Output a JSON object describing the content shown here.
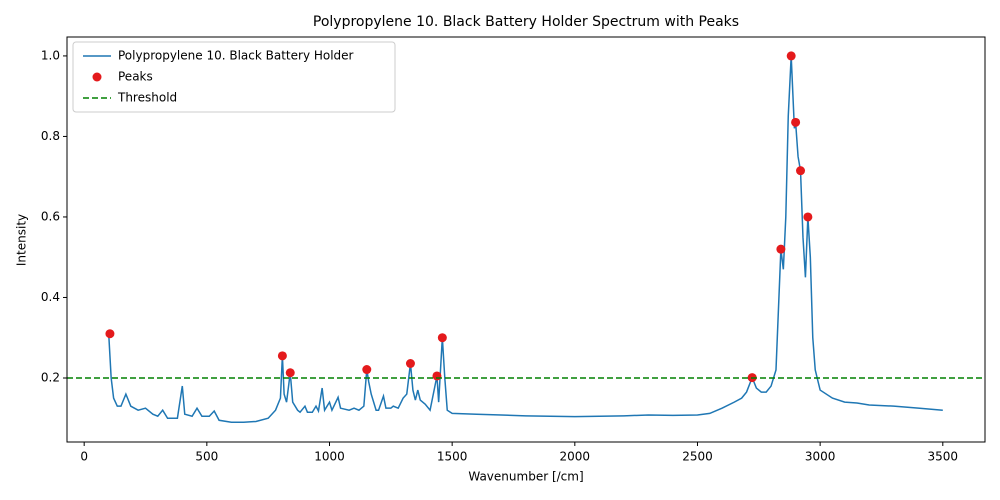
{
  "chart_data": {
    "type": "line",
    "title": "Polypropylene 10. Black Battery Holder Spectrum with Peaks",
    "x_label": "Wavenumber [/cm]",
    "y_label": "Intensity",
    "xlim": [
      -70,
      3672
    ],
    "ylim": [
      0.041,
      1.047
    ],
    "xticks": [
      0,
      500,
      1000,
      1500,
      2000,
      2500,
      3000,
      3500
    ],
    "yticks": [
      0.2,
      0.4,
      0.6,
      0.8,
      {
        "value": 1,
        "label": "1.0"
      }
    ],
    "legend": "upper left",
    "series": [
      {
        "name": "Polypropylene 10. Black Battery Holder",
        "type": "line",
        "color": "#1f77b4",
        "x": [
          100,
          110,
          120,
          135,
          150,
          170,
          190,
          220,
          250,
          280,
          300,
          320,
          340,
          380,
          400,
          410,
          440,
          460,
          480,
          510,
          530,
          550,
          600,
          650,
          700,
          750,
          780,
          800,
          808,
          815,
          825,
          840,
          850,
          870,
          880,
          900,
          910,
          930,
          945,
          955,
          970,
          980,
          1000,
          1010,
          1035,
          1045,
          1080,
          1100,
          1120,
          1140,
          1152,
          1160,
          1170,
          1190,
          1200,
          1220,
          1230,
          1250,
          1260,
          1280,
          1300,
          1315,
          1330,
          1340,
          1350,
          1360,
          1370,
          1390,
          1410,
          1438,
          1445,
          1460,
          1470,
          1480,
          1500,
          1600,
          1700,
          1800,
          1900,
          2000,
          2100,
          2200,
          2300,
          2400,
          2500,
          2550,
          2600,
          2650,
          2680,
          2700,
          2723,
          2740,
          2760,
          2780,
          2800,
          2820,
          2840,
          2850,
          2860,
          2870,
          2882,
          2895,
          2900,
          2910,
          2920,
          2930,
          2940,
          2950,
          2960,
          2970,
          2980,
          3000,
          3050,
          3100,
          3150,
          3200,
          3300,
          3400,
          3500
        ],
        "values": [
          0.31,
          0.2,
          0.15,
          0.13,
          0.13,
          0.16,
          0.13,
          0.12,
          0.125,
          0.11,
          0.105,
          0.12,
          0.1,
          0.1,
          0.18,
          0.11,
          0.105,
          0.125,
          0.105,
          0.105,
          0.118,
          0.095,
          0.09,
          0.09,
          0.092,
          0.1,
          0.12,
          0.15,
          0.255,
          0.16,
          0.14,
          0.213,
          0.14,
          0.12,
          0.115,
          0.13,
          0.115,
          0.115,
          0.13,
          0.118,
          0.175,
          0.12,
          0.14,
          0.12,
          0.152,
          0.125,
          0.12,
          0.125,
          0.12,
          0.13,
          0.221,
          0.19,
          0.16,
          0.12,
          0.12,
          0.155,
          0.125,
          0.125,
          0.13,
          0.125,
          0.15,
          0.16,
          0.236,
          0.17,
          0.145,
          0.17,
          0.145,
          0.135,
          0.12,
          0.205,
          0.14,
          0.3,
          0.2,
          0.12,
          0.112,
          0.11,
          0.108,
          0.106,
          0.105,
          0.104,
          0.105,
          0.106,
          0.108,
          0.107,
          0.108,
          0.112,
          0.125,
          0.14,
          0.15,
          0.165,
          0.201,
          0.175,
          0.165,
          0.165,
          0.18,
          0.22,
          0.52,
          0.47,
          0.6,
          0.85,
          1.0,
          0.82,
          0.835,
          0.75,
          0.715,
          0.55,
          0.45,
          0.6,
          0.5,
          0.3,
          0.22,
          0.17,
          0.15,
          0.14,
          0.138,
          0.133,
          0.13,
          0.125,
          0.12
        ]
      },
      {
        "name": "Peaks",
        "type": "scatter",
        "color": "#e41a1c",
        "x": [
          105,
          808,
          840,
          1152,
          1330,
          1438,
          1460,
          2723,
          2840,
          2882,
          2900,
          2920,
          2950
        ],
        "values": [
          0.31,
          0.255,
          0.213,
          0.221,
          0.236,
          0.205,
          0.3,
          0.201,
          0.52,
          1.0,
          0.835,
          0.715,
          0.6
        ]
      },
      {
        "name": "Threshold",
        "type": "hline",
        "color": "#008000",
        "value": 0.2
      }
    ]
  }
}
